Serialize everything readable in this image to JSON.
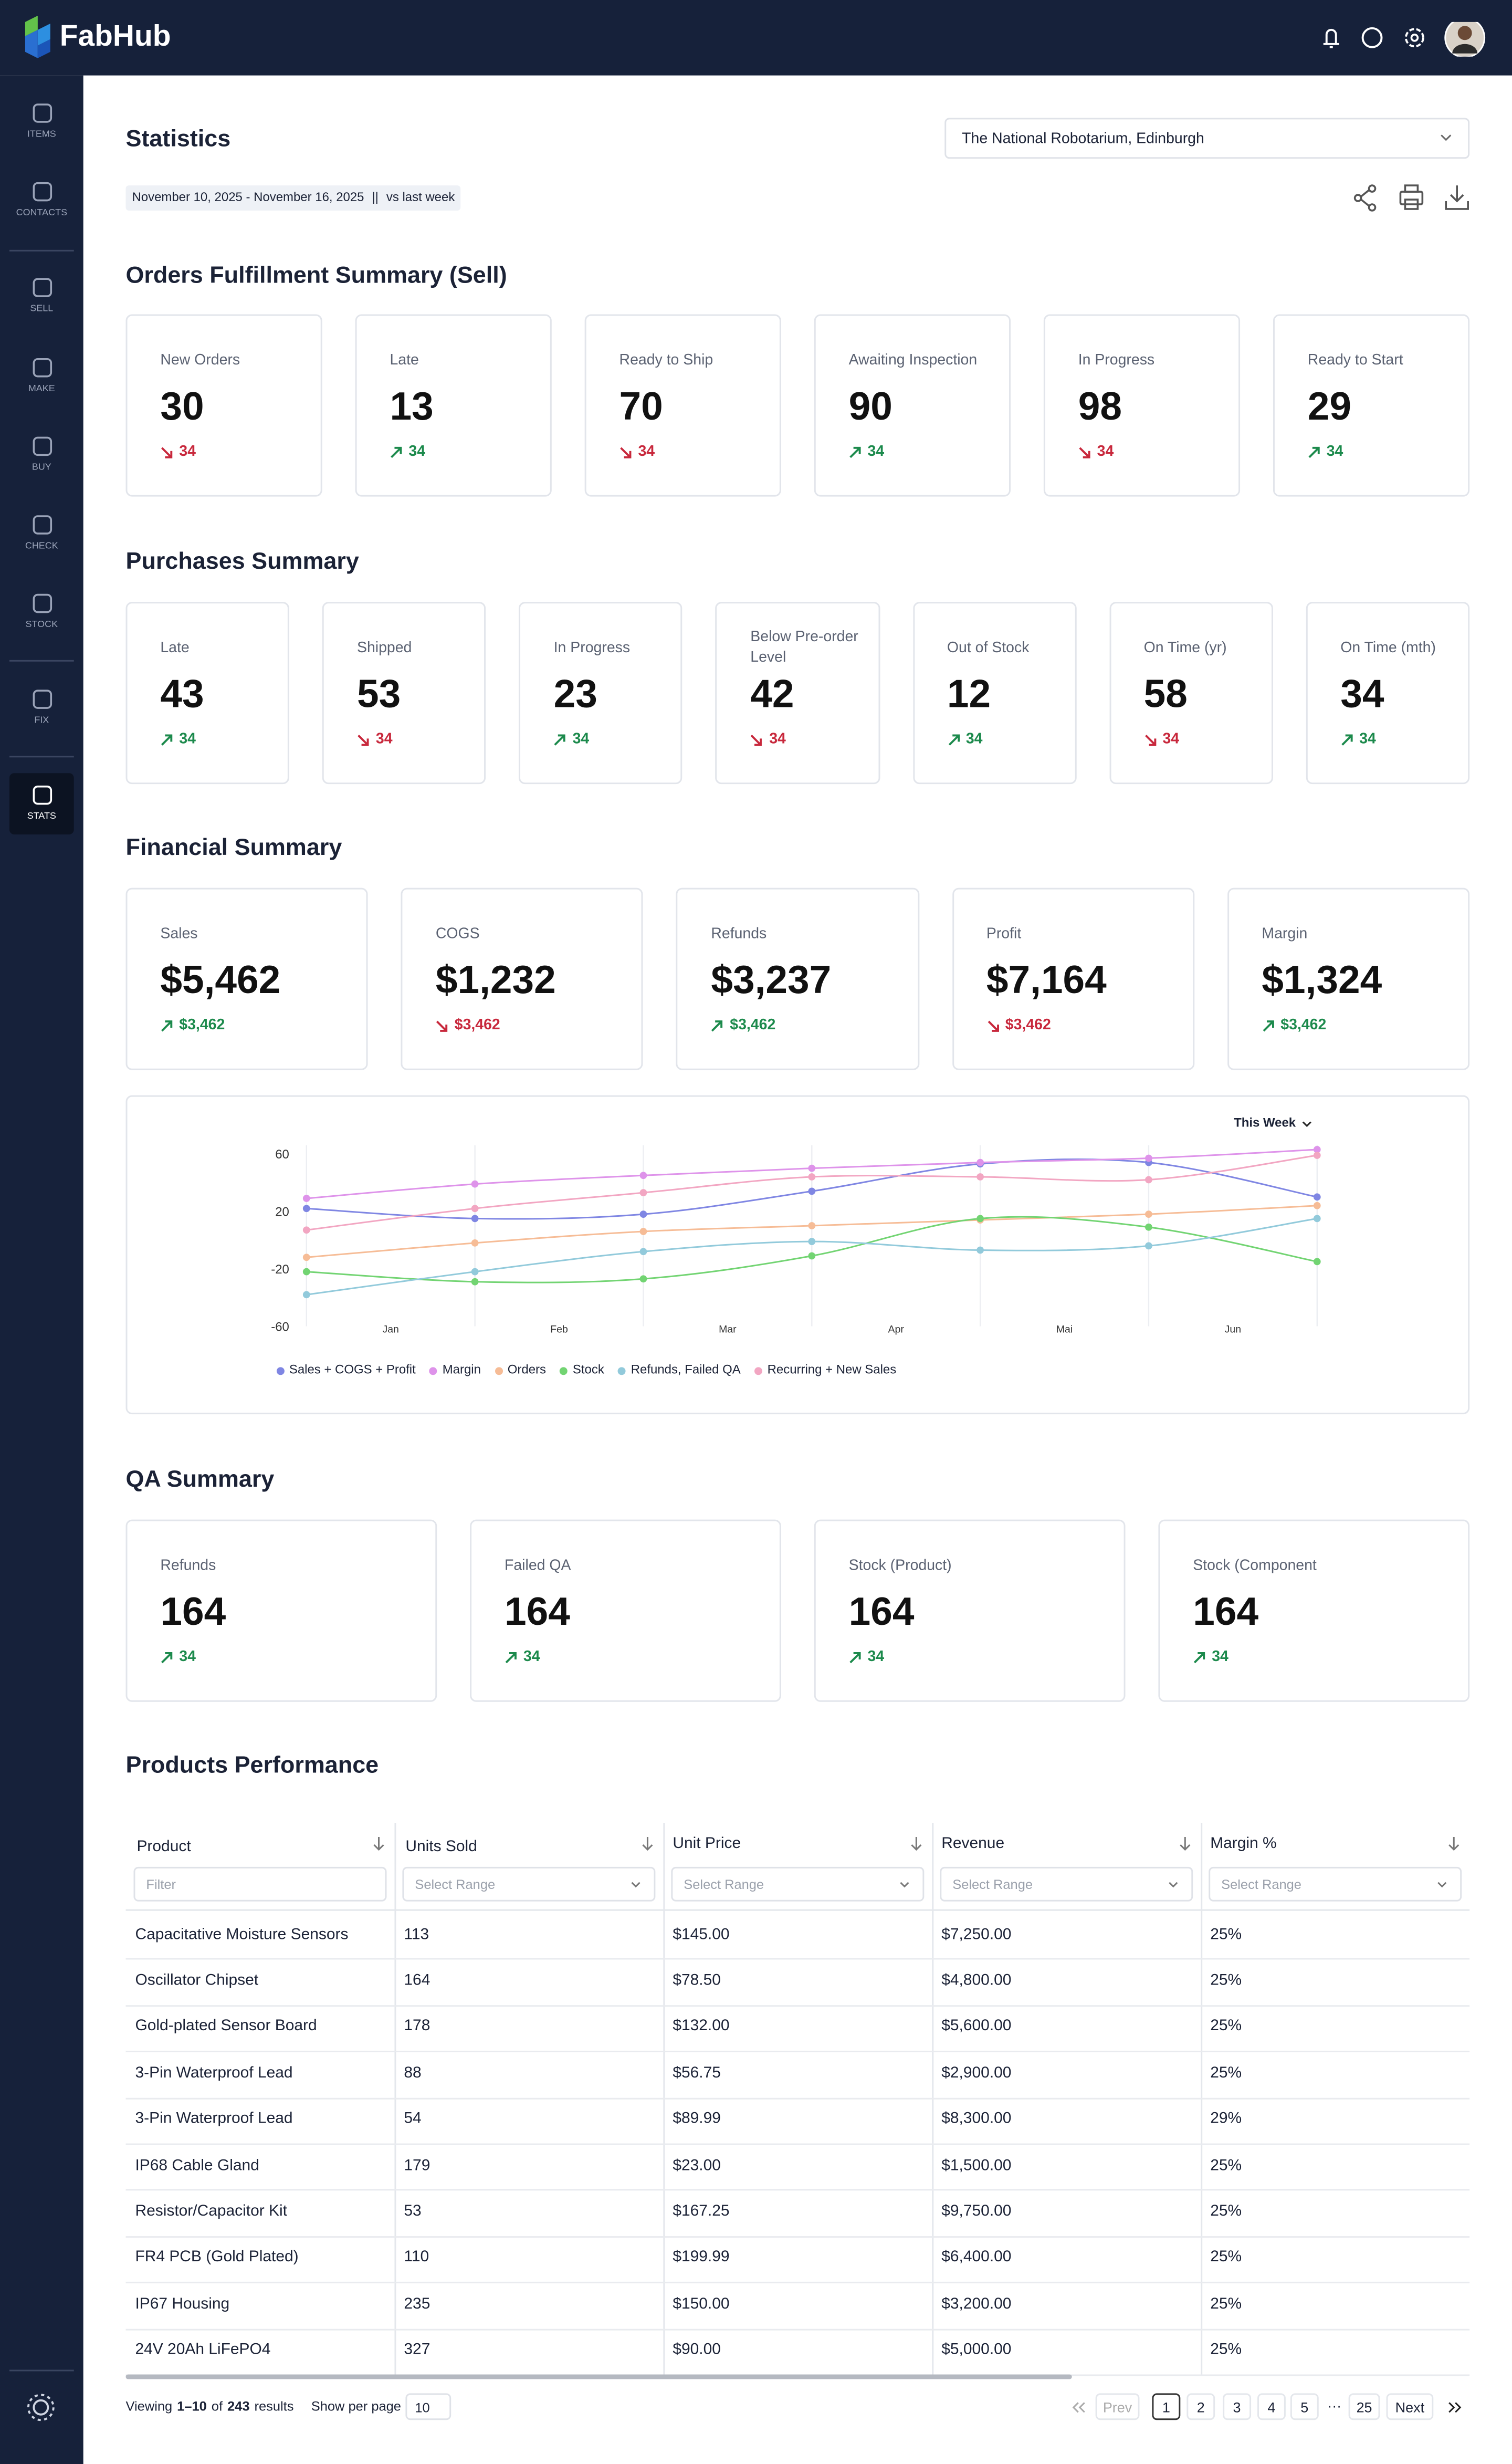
{
  "header": {
    "brand": "FabHub"
  },
  "sidebar": {
    "items": [
      "ITEMS",
      "CONTACTS",
      "SELL",
      "MAKE",
      "BUY",
      "CHECK",
      "STOCK",
      "FIX",
      "STATS"
    ],
    "active": "STATS"
  },
  "page": {
    "title": "Statistics",
    "location": "The National Robotarium, Edinburgh",
    "date_range": "November 10, 2025 - November 16, 2025",
    "separator": "||",
    "comparison": "vs last week"
  },
  "orders": {
    "title": "Orders Fulfillment Summary (Sell)",
    "cards": [
      {
        "label": "New Orders",
        "value": "30",
        "change": "34",
        "trend": "down"
      },
      {
        "label": "Late",
        "value": "13",
        "change": "34",
        "trend": "up"
      },
      {
        "label": "Ready to Ship",
        "value": "70",
        "change": "34",
        "trend": "down"
      },
      {
        "label": "Awaiting Inspection",
        "value": "90",
        "change": "34",
        "trend": "up"
      },
      {
        "label": "In Progress",
        "value": "98",
        "change": "34",
        "trend": "down"
      },
      {
        "label": "Ready to Start",
        "value": "29",
        "change": "34",
        "trend": "up"
      }
    ]
  },
  "purchases": {
    "title": "Purchases Summary",
    "cards": [
      {
        "label": "Late",
        "value": "43",
        "change": "34",
        "trend": "up"
      },
      {
        "label": "Shipped",
        "value": "53",
        "change": "34",
        "trend": "down"
      },
      {
        "label": "In Progress",
        "value": "23",
        "change": "34",
        "trend": "up"
      },
      {
        "label": "Below Pre-order Level",
        "value": "42",
        "change": "34",
        "trend": "down"
      },
      {
        "label": "Out of Stock",
        "value": "12",
        "change": "34",
        "trend": "up"
      },
      {
        "label": "On Time (yr)",
        "value": "58",
        "change": "34",
        "trend": "down"
      },
      {
        "label": "On Time (mth)",
        "value": "34",
        "change": "34",
        "trend": "up"
      }
    ]
  },
  "financial": {
    "title": "Financial Summary",
    "cards": [
      {
        "label": "Sales",
        "value": "$5,462",
        "change": "$3,462",
        "trend": "up"
      },
      {
        "label": "COGS",
        "value": "$1,232",
        "change": "$3,462",
        "trend": "down"
      },
      {
        "label": "Refunds",
        "value": "$3,237",
        "change": "$3,462",
        "trend": "up"
      },
      {
        "label": "Profit",
        "value": "$7,164",
        "change": "$3,462",
        "trend": "down"
      },
      {
        "label": "Margin",
        "value": "$1,324",
        "change": "$3,462",
        "trend": "up"
      }
    ]
  },
  "chart_data": {
    "type": "line",
    "range": "This Week",
    "x": [
      0,
      1,
      2,
      3,
      4,
      5,
      6
    ],
    "xlim": [
      0,
      6
    ],
    "xticks": [
      {
        "value": 0.5,
        "label": "Jan"
      },
      {
        "value": 1.5,
        "label": "Feb"
      },
      {
        "value": 2.5,
        "label": "Mar"
      },
      {
        "value": 3.5,
        "label": "Apr"
      },
      {
        "value": 4.5,
        "label": "Mai"
      },
      {
        "value": 5.5,
        "label": "Jun"
      }
    ],
    "ylim": [
      -60,
      66
    ],
    "yticks": [
      -60,
      -20,
      20,
      60
    ],
    "grid": true,
    "series": [
      {
        "name": "Sales + COGS + Profit",
        "color": "#7f86e3",
        "values": [
          22,
          15,
          18,
          34,
          53,
          54,
          30
        ]
      },
      {
        "name": "Margin",
        "color": "#de93ea",
        "values": [
          29,
          39,
          45,
          50,
          54,
          57,
          63
        ]
      },
      {
        "name": "Orders",
        "color": "#f6bc96",
        "values": [
          -12,
          -2,
          6,
          10,
          14,
          18,
          24
        ]
      },
      {
        "name": "Stock",
        "color": "#72d472",
        "values": [
          -22,
          -29,
          -27,
          -11,
          15,
          9,
          -15
        ]
      },
      {
        "name": "Refunds, Failed QA",
        "color": "#92cadb",
        "values": [
          -38,
          -22,
          -8,
          -1,
          -7,
          -4,
          15
        ]
      },
      {
        "name": "Recurring + New Sales",
        "color": "#f2a6c2",
        "values": [
          7,
          22,
          33,
          44,
          44,
          42,
          59
        ]
      }
    ]
  },
  "qa": {
    "title": "QA Summary",
    "cards": [
      {
        "label": "Refunds",
        "value": "164",
        "change": "34",
        "trend": "up"
      },
      {
        "label": "Failed QA",
        "value": "164",
        "change": "34",
        "trend": "up"
      },
      {
        "label": "Stock (Product)",
        "value": "164",
        "change": "34",
        "trend": "up"
      },
      {
        "label": "Stock (Component",
        "value": "164",
        "change": "34",
        "trend": "up"
      }
    ]
  },
  "products": {
    "title": "Products Performance",
    "columns": [
      "Product",
      "Units Sold",
      "Unit Price",
      "Revenue",
      "Margin %"
    ],
    "filters": [
      "Filter",
      "Select Range",
      "Select Range",
      "Select Range",
      "Select Range"
    ],
    "rows": [
      [
        "Capacitative Moisture Sensors",
        "113",
        "$145.00",
        "$7,250.00",
        "25%"
      ],
      [
        "Oscillator Chipset",
        "164",
        "$78.50",
        "$4,800.00",
        "25%"
      ],
      [
        "Gold-plated Sensor Board",
        "178",
        "$132.00",
        "$5,600.00",
        "25%"
      ],
      [
        "3-Pin Waterproof Lead",
        "88",
        "$56.75",
        "$2,900.00",
        "25%"
      ],
      [
        "3-Pin Waterproof Lead",
        "54",
        "$89.99",
        "$8,300.00",
        "29%"
      ],
      [
        "IP68 Cable Gland",
        "179",
        "$23.00",
        "$1,500.00",
        "25%"
      ],
      [
        "Resistor/Capacitor Kit",
        "53",
        "$167.25",
        "$9,750.00",
        "25%"
      ],
      [
        "FR4 PCB (Gold Plated)",
        "110",
        "$199.99",
        "$6,400.00",
        "25%"
      ],
      [
        "IP67 Housing",
        "235",
        "$150.00",
        "$3,200.00",
        "25%"
      ],
      [
        "24V 20Ah LiFePO4",
        "327",
        "$90.00",
        "$5,000.00",
        "25%"
      ]
    ],
    "footer": {
      "viewing": "Viewing",
      "range": "1–10",
      "of": "of",
      "total": "243",
      "results": "results",
      "per_page_label": "Show per page",
      "per_page": "10"
    },
    "pagination": {
      "prev": "Prev",
      "pages": [
        "1",
        "2",
        "3",
        "4",
        "5"
      ],
      "ellipsis": "···",
      "last": "25",
      "next": "Next",
      "current": "1"
    }
  }
}
